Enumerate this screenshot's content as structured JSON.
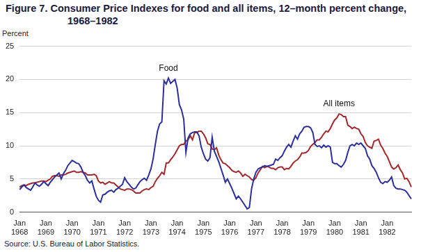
{
  "chart_data": {
    "type": "line",
    "title": "Figure 7. Consumer Price Indexes for food and all items, 12–month percent change, 1968–1982",
    "y_label": "Percent",
    "source": "Source: U.S. Bureau of Labor Statistics.",
    "ylim": [
      0,
      25
    ],
    "yticks": [
      0,
      5,
      10,
      15,
      20,
      25
    ],
    "grid": true,
    "categories": [
      "Jan 1968",
      null,
      null,
      null,
      null,
      null,
      null,
      null,
      null,
      null,
      null,
      null,
      "Jan 1969",
      null,
      null,
      null,
      null,
      null,
      null,
      null,
      null,
      null,
      null,
      null,
      "Jan 1970",
      null,
      null,
      null,
      null,
      null,
      null,
      null,
      null,
      null,
      null,
      null,
      "Jan 1971",
      null,
      null,
      null,
      null,
      null,
      null,
      null,
      null,
      null,
      null,
      null,
      "Jan 1972",
      null,
      null,
      null,
      null,
      null,
      null,
      null,
      null,
      null,
      null,
      null,
      "Jan 1973",
      null,
      null,
      null,
      null,
      null,
      null,
      null,
      null,
      null,
      null,
      null,
      "Jan 1974",
      null,
      null,
      null,
      null,
      null,
      null,
      null,
      null,
      null,
      null,
      null,
      "Jan 1975",
      null,
      null,
      null,
      null,
      null,
      null,
      null,
      null,
      null,
      null,
      null,
      "Jan 1976",
      null,
      null,
      null,
      null,
      null,
      null,
      null,
      null,
      null,
      null,
      null,
      "Jan 1977",
      null,
      null,
      null,
      null,
      null,
      null,
      null,
      null,
      null,
      null,
      null,
      "Jan 1978",
      null,
      null,
      null,
      null,
      null,
      null,
      null,
      null,
      null,
      null,
      null,
      "Jan 1979",
      null,
      null,
      null,
      null,
      null,
      null,
      null,
      null,
      null,
      null,
      null,
      "Jan 1980",
      null,
      null,
      null,
      null,
      null,
      null,
      null,
      null,
      null,
      null,
      null,
      "Jan 1981",
      null,
      null,
      null,
      null,
      null,
      null,
      null,
      null,
      null,
      null,
      null,
      "Jan 1982",
      null,
      null,
      null,
      null,
      null,
      null,
      null,
      null,
      null,
      null,
      null
    ],
    "series": [
      {
        "name": "Food",
        "color": "#2a2f9c",
        "values": [
          3.4,
          3.8,
          4.1,
          3.7,
          3.5,
          3.3,
          3.8,
          4.4,
          4.1,
          3.9,
          4.2,
          4.6,
          4.3,
          4.0,
          4.5,
          4.9,
          5.3,
          5.6,
          5.9,
          5.0,
          5.8,
          6.3,
          7.0,
          7.4,
          7.8,
          7.6,
          7.4,
          7.3,
          6.8,
          6.0,
          5.5,
          4.8,
          4.4,
          4.7,
          3.5,
          2.4,
          1.8,
          1.5,
          2.6,
          2.7,
          3.0,
          3.2,
          3.3,
          3.0,
          3.4,
          3.6,
          3.9,
          4.2,
          5.2,
          4.6,
          4.2,
          3.8,
          3.5,
          3.6,
          4.1,
          4.6,
          4.9,
          5.1,
          4.8,
          5.6,
          6.5,
          8.0,
          10.2,
          12.2,
          13.3,
          13.6,
          19.8,
          19.3,
          20.2,
          19.4,
          19.7,
          20.0,
          18.7,
          16.2,
          15.4,
          14.0,
          9.0,
          11.2,
          11.8,
          12.0,
          12.1,
          12.1,
          11.5,
          9.8,
          8.8,
          8.0,
          7.7,
          8.2,
          11.3,
          9.2,
          8.4,
          7.6,
          6.6,
          5.6,
          4.5,
          5.0,
          4.3,
          3.6,
          2.8,
          2.0,
          2.4,
          2.0,
          1.5,
          1.0,
          0.5,
          0.7,
          3.5,
          5.0,
          6.0,
          6.5,
          6.7,
          6.8,
          7.0,
          6.9,
          7.0,
          7.1,
          7.2,
          8.0,
          7.8,
          8.2,
          8.5,
          9.2,
          9.8,
          10.2,
          9.8,
          10.7,
          11.5,
          11.0,
          11.8,
          12.2,
          12.8,
          12.9,
          12.9,
          12.7,
          12.0,
          10.2,
          9.9,
          10.0,
          9.7,
          10.1,
          9.8,
          10.0,
          9.8,
          7.5,
          7.3,
          7.3,
          7.0,
          6.8,
          7.2,
          7.8,
          9.0,
          10.0,
          10.2,
          10.0,
          10.4,
          10.2,
          10.4,
          10.0,
          9.6,
          8.5,
          8.0,
          7.0,
          6.6,
          6.0,
          5.2,
          4.5,
          4.3,
          4.6,
          4.5,
          4.8,
          5.3,
          4.0,
          3.6,
          3.5,
          3.5,
          3.4,
          3.3,
          3.0,
          2.5,
          2.0
        ]
      },
      {
        "name": "All items",
        "color": "#a3282b",
        "values": [
          3.8,
          4.0,
          4.1,
          4.0,
          4.2,
          4.3,
          4.4,
          4.4,
          4.5,
          4.6,
          4.7,
          4.7,
          4.6,
          4.8,
          5.0,
          5.4,
          5.5,
          5.5,
          5.4,
          5.6,
          5.6,
          5.7,
          5.9,
          6.0,
          6.1,
          6.2,
          6.0,
          6.0,
          6.1,
          6.0,
          5.9,
          5.6,
          5.6,
          5.6,
          5.7,
          5.5,
          4.7,
          4.4,
          4.5,
          4.2,
          4.4,
          4.6,
          4.4,
          4.4,
          4.1,
          3.8,
          3.5,
          3.4,
          3.3,
          3.5,
          3.5,
          3.4,
          3.2,
          2.9,
          2.9,
          2.9,
          3.2,
          3.4,
          3.5,
          3.4,
          3.7,
          3.9,
          4.6,
          5.1,
          5.5,
          6.0,
          5.7,
          7.4,
          7.4,
          7.9,
          8.3,
          8.8,
          9.4,
          10.0,
          10.2,
          10.2,
          10.7,
          10.9,
          11.5,
          10.9,
          12.0,
          12.0,
          12.2,
          12.2,
          11.8,
          11.2,
          10.3,
          10.2,
          9.5,
          9.4,
          9.7,
          8.6,
          7.9,
          7.4,
          7.3,
          7.0,
          6.7,
          6.3,
          6.1,
          6.0,
          6.2,
          5.9,
          5.4,
          5.7,
          5.5,
          5.3,
          4.9,
          4.8,
          5.2,
          5.9,
          6.4,
          6.9,
          6.7,
          6.9,
          6.8,
          6.6,
          6.6,
          6.4,
          6.7,
          6.8,
          6.8,
          6.4,
          6.6,
          6.5,
          6.9,
          7.4,
          7.7,
          7.9,
          8.3,
          8.9,
          8.9,
          9.0,
          9.3,
          9.9,
          10.2,
          10.5,
          10.9,
          10.9,
          11.3,
          11.8,
          12.2,
          12.1,
          12.6,
          13.3,
          13.9,
          14.2,
          14.8,
          14.7,
          14.4,
          14.4,
          13.1,
          12.9,
          12.6,
          12.8,
          12.6,
          12.5,
          11.8,
          11.4,
          10.5,
          10.0,
          9.8,
          9.6,
          10.7,
          10.8,
          11.0,
          10.1,
          9.6,
          8.9,
          8.4,
          7.6,
          6.8,
          6.5,
          6.7,
          7.1,
          6.4,
          5.9,
          5.0,
          5.1,
          4.6,
          3.8
        ]
      }
    ]
  }
}
